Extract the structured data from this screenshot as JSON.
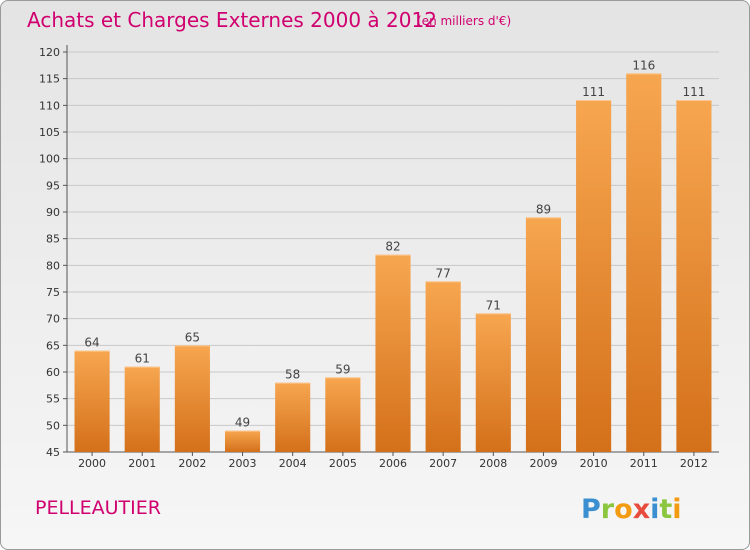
{
  "chart_data": {
    "type": "bar",
    "title": "Achats et Charges Externes 2000 à 2012",
    "subtitle": "(en milliers d'€)",
    "categories": [
      "2000",
      "2001",
      "2002",
      "2003",
      "2004",
      "2005",
      "2006",
      "2007",
      "2008",
      "2009",
      "2010",
      "2011",
      "2012"
    ],
    "values": [
      64,
      61,
      65,
      49,
      58,
      59,
      82,
      77,
      71,
      89,
      111,
      116,
      111
    ],
    "ylim": [
      45,
      120
    ],
    "yticks": [
      45,
      50,
      55,
      60,
      65,
      70,
      75,
      80,
      85,
      90,
      95,
      100,
      105,
      110,
      115,
      120
    ],
    "grid": true,
    "bar_color": "#f0922e",
    "legend": "none"
  },
  "place_name": "PELLEAUTIER",
  "brand": {
    "letters": [
      "P",
      "r",
      "o",
      "x",
      "i",
      "t",
      "i"
    ],
    "colors": [
      "#3a8fd0",
      "#8cc63f",
      "#f39c12",
      "#e74c3c",
      "#3a8fd0",
      "#8cc63f",
      "#f39c12"
    ]
  }
}
